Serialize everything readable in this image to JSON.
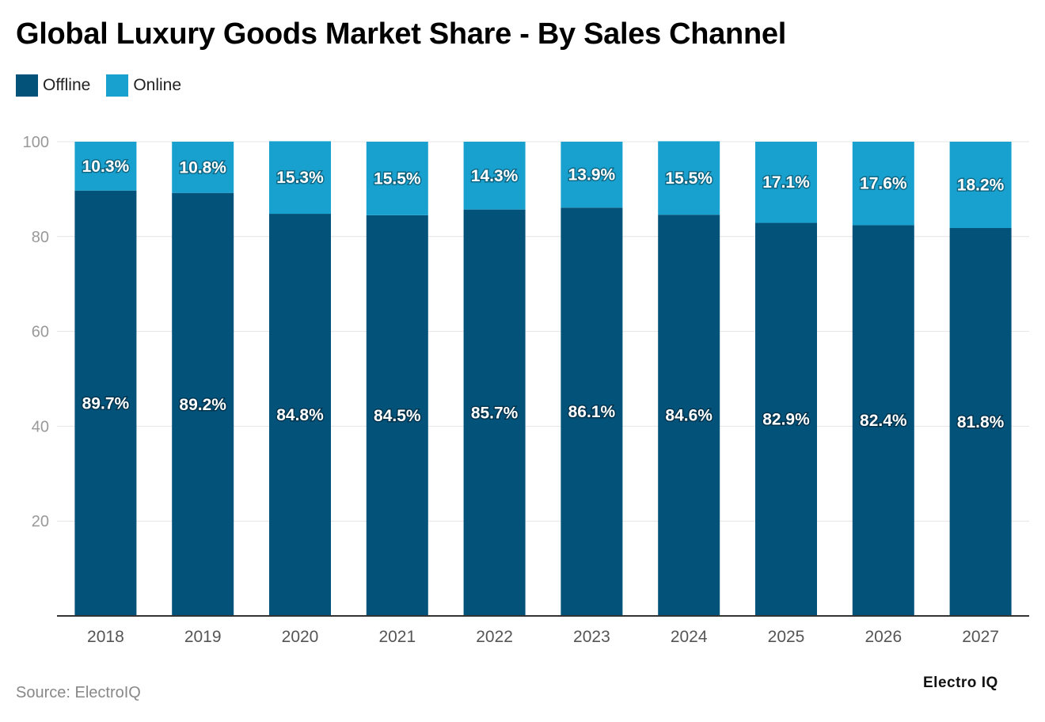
{
  "chart_data": {
    "type": "bar",
    "stacked": true,
    "title": "Global Luxury Goods Market Share - By Sales Channel",
    "categories": [
      "2018",
      "2019",
      "2020",
      "2021",
      "2022",
      "2023",
      "2024",
      "2025",
      "2026",
      "2027"
    ],
    "series": [
      {
        "name": "Offline",
        "color": "#02527a",
        "values": [
          89.7,
          89.2,
          84.8,
          84.5,
          85.7,
          86.1,
          84.6,
          82.9,
          82.4,
          81.8
        ]
      },
      {
        "name": "Online",
        "color": "#18a1cf",
        "values": [
          10.3,
          10.8,
          15.3,
          15.5,
          14.3,
          13.9,
          15.5,
          17.1,
          17.6,
          18.2
        ]
      }
    ],
    "ylim": [
      0,
      100
    ],
    "yticks": [
      20,
      40,
      60,
      80,
      100
    ],
    "grid": true,
    "legend": "top-left",
    "value_suffix": "%"
  },
  "source": "Source: ElectroIQ",
  "logo": "Electro IQ"
}
